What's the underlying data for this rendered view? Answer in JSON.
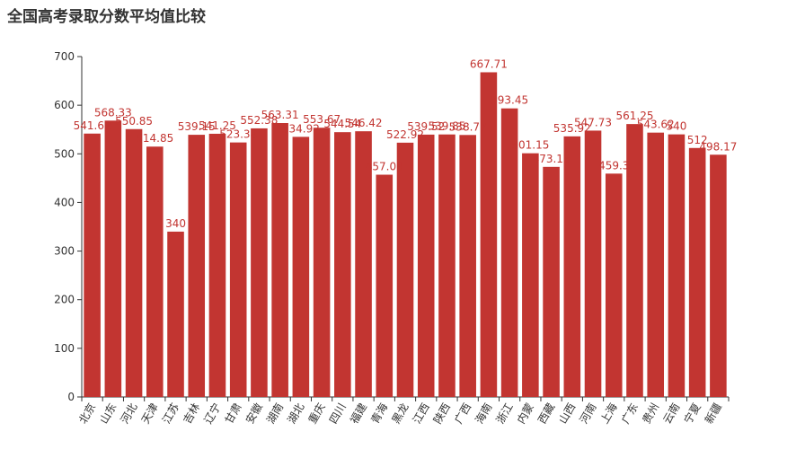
{
  "chart_data": {
    "type": "bar",
    "title": "全国高考录取分数平均值比较",
    "xlabel": "",
    "ylabel": "",
    "ylim": [
      0,
      700
    ],
    "yticks": [
      0,
      100,
      200,
      300,
      400,
      500,
      600,
      700
    ],
    "grid": false,
    "bar_color": "#c23531",
    "categories": [
      "北京",
      "山东",
      "河北",
      "天津",
      "江苏",
      "吉林",
      "辽宁",
      "甘肃",
      "安徽",
      "湖南",
      "湖北",
      "重庆",
      "四川",
      "福建",
      "青海",
      "黑龙",
      "江西",
      "陕西",
      "广西",
      "海南",
      "浙江",
      "内蒙",
      "西藏",
      "山西",
      "河南",
      "上海",
      "广东",
      "贵州",
      "云南",
      "宁夏",
      "新疆"
    ],
    "values": [
      541.62,
      568.33,
      550.85,
      514.85,
      340,
      539.15,
      541.25,
      523.38,
      552.38,
      563.31,
      534.92,
      553.67,
      544.54,
      546.42,
      457.08,
      522.92,
      539.52,
      539.85,
      538.77,
      667.71,
      593.45,
      501.15,
      473.15,
      535.92,
      547.73,
      459.3,
      561.25,
      543.62,
      540,
      512,
      498.17
    ]
  }
}
